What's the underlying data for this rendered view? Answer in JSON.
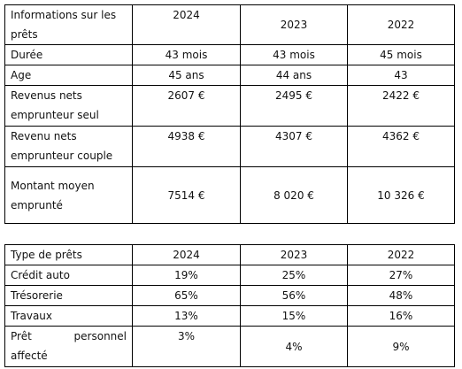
{
  "loans_table": {
    "header": {
      "label": "Informations sur les prêts",
      "y2024": "2024",
      "y2023": "2023",
      "y2022": "2022"
    },
    "rows": [
      {
        "label": "Durée",
        "v2024": "43 mois",
        "v2023": "43 mois",
        "v2022": "45 mois"
      },
      {
        "label": "Age",
        "v2024": "45 ans",
        "v2023": "44 ans",
        "v2022": "43"
      },
      {
        "label": "Revenus nets emprunteur seul",
        "v2024": "2607 €",
        "v2023": "2495 €",
        "v2022": "2422 €"
      },
      {
        "label": "Revenu nets emprunteur couple",
        "v2024": "4938 €",
        "v2023": "4307 €",
        "v2022": "4362 €"
      },
      {
        "label": "Montant moyen emprunté",
        "v2024": "7514 €",
        "v2023": "8 020 €",
        "v2022": "10 326 €"
      }
    ]
  },
  "types_table": {
    "header": {
      "label": "Type de prêts",
      "y2024": "2024",
      "y2023": "2023",
      "y2022": "2022"
    },
    "rows": [
      {
        "label": "Crédit auto",
        "v2024": "19%",
        "v2023": "25%",
        "v2022": "27%"
      },
      {
        "label": "Trésorerie",
        "v2024": "65%",
        "v2023": "56%",
        "v2022": "48%"
      },
      {
        "label": "Travaux",
        "v2024": "13%",
        "v2023": "15%",
        "v2022": "16%"
      },
      {
        "label": "Prêt personnel affecté",
        "v2024": "3%",
        "v2023": "4%",
        "v2022": "9%"
      }
    ]
  }
}
